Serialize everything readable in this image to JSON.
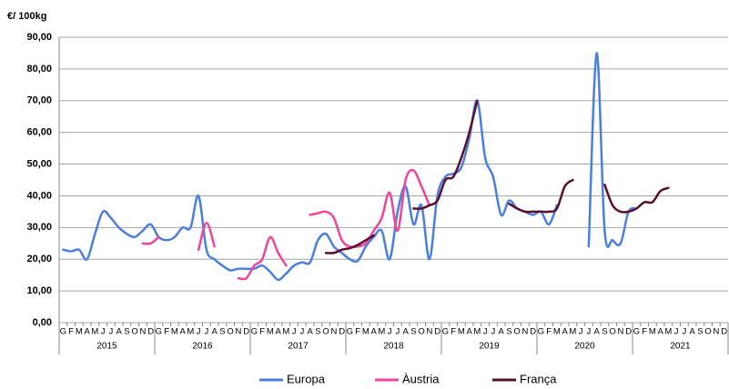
{
  "chart_data": {
    "type": "line",
    "y_axis_label": "€/ 100kg",
    "categories": [
      "G",
      "F",
      "M",
      "A",
      "M",
      "J",
      "J",
      "A",
      "S",
      "O",
      "N",
      "D",
      "G",
      "F",
      "M",
      "A",
      "M",
      "J",
      "J",
      "A",
      "S",
      "O",
      "N",
      "D",
      "G",
      "F",
      "M",
      "A",
      "M",
      "J",
      "J",
      "A",
      "S",
      "O",
      "N",
      "D",
      "G",
      "F",
      "M",
      "A",
      "M",
      "J",
      "J",
      "A",
      "S",
      "O",
      "N",
      "D",
      "G",
      "F",
      "M",
      "A",
      "M",
      "J",
      "J",
      "A",
      "S",
      "O",
      "N",
      "D",
      "G",
      "F",
      "M",
      "A",
      "M",
      "J",
      "J",
      "A",
      "S",
      "O",
      "N",
      "D",
      "G",
      "F",
      "M",
      "A",
      "M",
      "J",
      "J",
      "A",
      "S",
      "O",
      "N",
      "D"
    ],
    "groups": [
      "2015",
      "2016",
      "2017",
      "2018",
      "2019",
      "2020",
      "2021"
    ],
    "series": [
      {
        "name": "Europa",
        "color": "#4a7fe0",
        "values": [
          23,
          22.5,
          23,
          20,
          28,
          35,
          33,
          30,
          28,
          27,
          29,
          31,
          27,
          26,
          27,
          30,
          30,
          40,
          23,
          20,
          18,
          16.5,
          17,
          17,
          17,
          18,
          16,
          13.5,
          15.5,
          18,
          19,
          19,
          26,
          28,
          24,
          22,
          20,
          19.5,
          24,
          27,
          29,
          20,
          35,
          43,
          31,
          37,
          20,
          40,
          46,
          47,
          49,
          58,
          70,
          52,
          46,
          34,
          38.5,
          36,
          35,
          34,
          35,
          31,
          37,
          null,
          null,
          null,
          24,
          85,
          29,
          26,
          25,
          35,
          36,
          null,
          null,
          null,
          null,
          null,
          null,
          null,
          null,
          null,
          null,
          null
        ]
      },
      {
        "name": "Àustria",
        "color": "#f0469a",
        "values": [
          null,
          null,
          null,
          null,
          null,
          null,
          null,
          null,
          null,
          null,
          25,
          25,
          27,
          null,
          null,
          null,
          null,
          23,
          31.5,
          24,
          null,
          null,
          14,
          14,
          18,
          20,
          27,
          22,
          18,
          null,
          null,
          34,
          34.5,
          35,
          33,
          26,
          24,
          24,
          25,
          29,
          33,
          41,
          29,
          45,
          48,
          43,
          37,
          null,
          null,
          null,
          null,
          null,
          null,
          null,
          null,
          null,
          null,
          null,
          null,
          null,
          null,
          null,
          null,
          null,
          null,
          null,
          null,
          null,
          null,
          null,
          null,
          null,
          null,
          null,
          null,
          null,
          null,
          null,
          null,
          null,
          null,
          null,
          null,
          null
        ]
      },
      {
        "name": "França",
        "color": "#5a0f2a",
        "values": [
          null,
          null,
          null,
          null,
          null,
          null,
          null,
          null,
          null,
          null,
          null,
          null,
          null,
          null,
          null,
          null,
          null,
          null,
          null,
          null,
          null,
          null,
          null,
          null,
          null,
          null,
          null,
          null,
          null,
          null,
          null,
          null,
          null,
          22,
          22,
          23,
          23.5,
          24.5,
          26,
          27.5,
          null,
          null,
          null,
          null,
          36,
          36,
          37,
          38.5,
          45,
          46,
          52,
          60,
          70,
          null,
          null,
          null,
          37.5,
          36,
          35,
          35,
          35,
          35,
          36,
          43,
          45,
          null,
          null,
          null,
          43.5,
          37,
          35,
          35,
          36,
          38,
          38,
          41.5,
          42.5,
          null,
          null,
          null,
          null,
          null,
          null,
          null
        ]
      }
    ],
    "ylim": [
      0,
      90
    ],
    "yticks": [
      {
        "value": 0,
        "label": "0,00"
      },
      {
        "value": 10,
        "label": "10,00"
      },
      {
        "value": 20,
        "label": "20,00"
      },
      {
        "value": 30,
        "label": "30,00"
      },
      {
        "value": 40,
        "label": "40,00"
      },
      {
        "value": 50,
        "label": "50,00"
      },
      {
        "value": 60,
        "label": "60,00"
      },
      {
        "value": 70,
        "label": "70,00"
      },
      {
        "value": 80,
        "label": "80,00"
      },
      {
        "value": 90,
        "label": "90,00"
      }
    ],
    "grid": true,
    "legend": "bottom"
  }
}
